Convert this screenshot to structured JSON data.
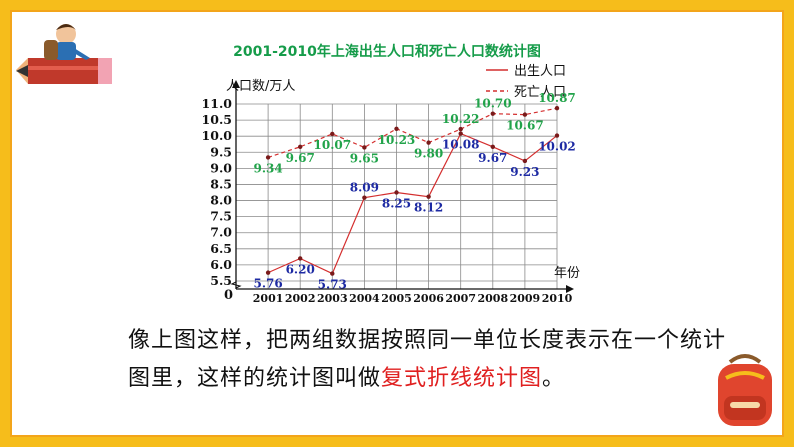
{
  "slide": {
    "caption_part1": "像上图这样，把两组数据按照同一单位长度表示在一个统计图里，这样的统计图叫做",
    "caption_highlight": "复式折线统计图",
    "caption_end": "。",
    "highlight_color": "#e02020",
    "frame_color": "#f6bd1b"
  },
  "chart_data": {
    "type": "line",
    "title": "2001-2010年上海出生人口和死亡人口数统计图",
    "ylabel": "人口数/万人",
    "xlabel": "年份",
    "x": [
      "2001",
      "2002",
      "2003",
      "2004",
      "2005",
      "2006",
      "2007",
      "2008",
      "2009",
      "2010"
    ],
    "y_origin_label": "0",
    "yticks": [
      "5.5",
      "6.0",
      "6.5",
      "7.0",
      "7.5",
      "8.0",
      "8.5",
      "9.0",
      "9.5",
      "10.0",
      "10.5",
      "11.0"
    ],
    "ylim": [
      5.5,
      11.0
    ],
    "axis_break": true,
    "grid": true,
    "legend_position": "top-right",
    "series": [
      {
        "name": "出生人口",
        "style": "solid",
        "color": "#d42e2e",
        "label_color": "#1d2aa3",
        "values": [
          5.76,
          6.2,
          5.73,
          8.09,
          8.25,
          8.12,
          10.08,
          9.67,
          9.23,
          10.02
        ],
        "labels": [
          "5.76",
          "6.20",
          "5.73",
          "8.09",
          "8.25",
          "8.12",
          "10.08",
          "9.67",
          "9.23",
          "10.02"
        ]
      },
      {
        "name": "死亡人口",
        "style": "dashed",
        "color": "#d42e2e",
        "label_color": "#21a34a",
        "values": [
          9.34,
          9.67,
          10.07,
          9.65,
          10.23,
          9.8,
          10.22,
          10.7,
          10.67,
          10.87
        ],
        "labels": [
          "9.34",
          "9.67",
          "10.07",
          "9.65",
          "10.23",
          "9.80",
          "10.22",
          "10.70",
          "10.67",
          "10.87"
        ]
      }
    ]
  }
}
